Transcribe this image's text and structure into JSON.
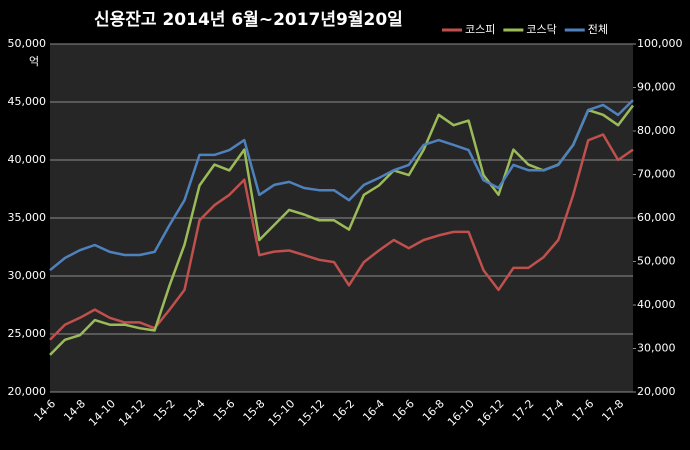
{
  "chart_data": {
    "type": "line",
    "title": "신용잔고 2014년 6월~2017년9월20일",
    "ylabel": "억",
    "categories": [
      "14-6",
      null,
      "14-8",
      null,
      "14-10",
      null,
      "14-12",
      null,
      "15-2",
      null,
      "15-4",
      null,
      "15-6",
      null,
      "15-8",
      null,
      "15-10",
      null,
      "15-12",
      null,
      "16-2",
      null,
      "16-4",
      null,
      "16-6",
      null,
      "16-8",
      null,
      "16-10",
      null,
      "16-12",
      null,
      "17-2",
      null,
      "17-4",
      null,
      "17-6",
      null,
      "17-8",
      null
    ],
    "series": [
      {
        "name": "코스피",
        "color": "#c0504d",
        "values": [
          24500,
          25800,
          26400,
          27100,
          26400,
          26000,
          26000,
          25500,
          27100,
          28800,
          34800,
          36100,
          37000,
          38300,
          31800,
          32100,
          32200,
          31800,
          31400,
          31200,
          29200,
          31200,
          32200,
          33100,
          32400,
          33100,
          33500,
          33800,
          33800,
          30500,
          28800,
          30700,
          30700,
          31600,
          33100,
          37000,
          41700,
          42200,
          40000,
          40900
        ]
      },
      {
        "name": "코스닥",
        "color": "#9bbb59",
        "values": [
          23200,
          24500,
          24900,
          26200,
          25800,
          25800,
          25500,
          25300,
          29200,
          32700,
          37800,
          39600,
          39100,
          40900,
          33100,
          34400,
          35700,
          35300,
          34800,
          34800,
          34000,
          37000,
          37800,
          39100,
          38700,
          40900,
          43900,
          43000,
          43400,
          38700,
          37000,
          40900,
          39600,
          39100,
          39600,
          41300,
          44300,
          43900,
          43000,
          44700
        ]
      },
      {
        "name": "전체",
        "color": "#4f81bd",
        "axis": "y2",
        "values": [
          48000,
          50800,
          52600,
          53800,
          52200,
          51500,
          51500,
          52200,
          58400,
          64100,
          74500,
          74500,
          75600,
          77900,
          65300,
          67600,
          68300,
          66900,
          66400,
          66400,
          64100,
          67600,
          69200,
          71000,
          72200,
          76800,
          77900,
          76800,
          75600,
          68700,
          66900,
          72200,
          71000,
          71000,
          72200,
          76800,
          84800,
          86000,
          83700,
          87100
        ]
      }
    ],
    "ylim": [
      20000,
      50000
    ],
    "yticks": [
      {
        "value": 20000,
        "label": "20,000"
      },
      {
        "value": 25000,
        "label": "25,000"
      },
      {
        "value": 30000,
        "label": "30,000"
      },
      {
        "value": 35000,
        "label": "35,000"
      },
      {
        "value": 40000,
        "label": "40,000"
      },
      {
        "value": 45000,
        "label": "45,000"
      },
      {
        "value": 50000,
        "label": "50,000"
      }
    ],
    "y2lim": [
      20000,
      100000
    ],
    "y2ticks": [
      {
        "value": 20000,
        "label": "20,000"
      },
      {
        "value": 30000,
        "label": "30,000"
      },
      {
        "value": 40000,
        "label": "40,000"
      },
      {
        "value": 50000,
        "label": "50,000"
      },
      {
        "value": 60000,
        "label": "60,000"
      },
      {
        "value": 70000,
        "label": "70,000"
      },
      {
        "value": 80000,
        "label": "80,000"
      },
      {
        "value": 90000,
        "label": "90,000"
      },
      {
        "value": 100000,
        "label": "100,000"
      }
    ],
    "grid": true,
    "legend": "top-right"
  }
}
